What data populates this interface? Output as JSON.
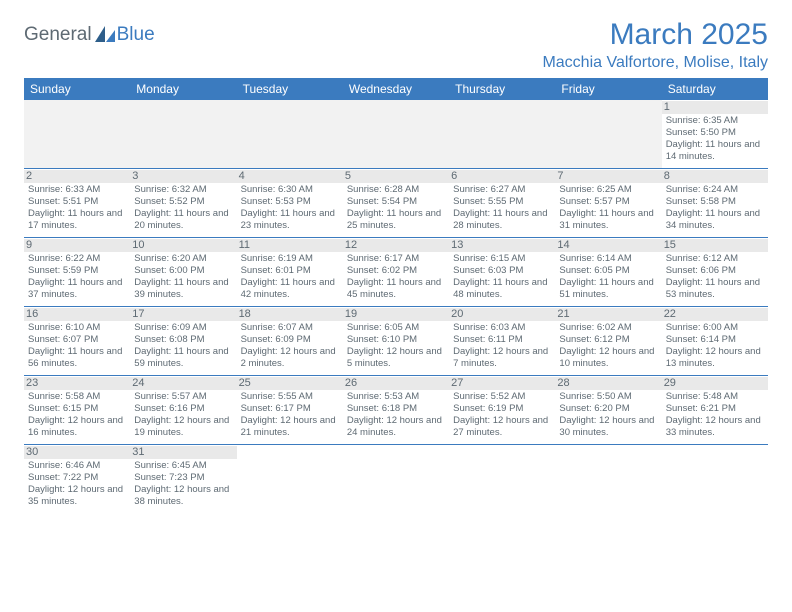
{
  "logo": {
    "text1": "General",
    "text2": "Blue"
  },
  "title": "March 2025",
  "subtitle": "Macchia Valfortore, Molise, Italy",
  "colors": {
    "accent": "#3b7bbf",
    "text_muted": "#5e6a73",
    "daynum_bg": "#e9e9e9",
    "empty_bg": "#f2f2f2",
    "white": "#ffffff"
  },
  "day_headers": [
    "Sunday",
    "Monday",
    "Tuesday",
    "Wednesday",
    "Thursday",
    "Friday",
    "Saturday"
  ],
  "weeks": [
    [
      {
        "empty": true
      },
      {
        "empty": true
      },
      {
        "empty": true
      },
      {
        "empty": true
      },
      {
        "empty": true
      },
      {
        "empty": true
      },
      {
        "n": "1",
        "sunrise": "6:35 AM",
        "sunset": "5:50 PM",
        "dl": "11 hours and 14 minutes."
      }
    ],
    [
      {
        "n": "2",
        "sunrise": "6:33 AM",
        "sunset": "5:51 PM",
        "dl": "11 hours and 17 minutes."
      },
      {
        "n": "3",
        "sunrise": "6:32 AM",
        "sunset": "5:52 PM",
        "dl": "11 hours and 20 minutes."
      },
      {
        "n": "4",
        "sunrise": "6:30 AM",
        "sunset": "5:53 PM",
        "dl": "11 hours and 23 minutes."
      },
      {
        "n": "5",
        "sunrise": "6:28 AM",
        "sunset": "5:54 PM",
        "dl": "11 hours and 25 minutes."
      },
      {
        "n": "6",
        "sunrise": "6:27 AM",
        "sunset": "5:55 PM",
        "dl": "11 hours and 28 minutes."
      },
      {
        "n": "7",
        "sunrise": "6:25 AM",
        "sunset": "5:57 PM",
        "dl": "11 hours and 31 minutes."
      },
      {
        "n": "8",
        "sunrise": "6:24 AM",
        "sunset": "5:58 PM",
        "dl": "11 hours and 34 minutes."
      }
    ],
    [
      {
        "n": "9",
        "sunrise": "6:22 AM",
        "sunset": "5:59 PM",
        "dl": "11 hours and 37 minutes."
      },
      {
        "n": "10",
        "sunrise": "6:20 AM",
        "sunset": "6:00 PM",
        "dl": "11 hours and 39 minutes."
      },
      {
        "n": "11",
        "sunrise": "6:19 AM",
        "sunset": "6:01 PM",
        "dl": "11 hours and 42 minutes."
      },
      {
        "n": "12",
        "sunrise": "6:17 AM",
        "sunset": "6:02 PM",
        "dl": "11 hours and 45 minutes."
      },
      {
        "n": "13",
        "sunrise": "6:15 AM",
        "sunset": "6:03 PM",
        "dl": "11 hours and 48 minutes."
      },
      {
        "n": "14",
        "sunrise": "6:14 AM",
        "sunset": "6:05 PM",
        "dl": "11 hours and 51 minutes."
      },
      {
        "n": "15",
        "sunrise": "6:12 AM",
        "sunset": "6:06 PM",
        "dl": "11 hours and 53 minutes."
      }
    ],
    [
      {
        "n": "16",
        "sunrise": "6:10 AM",
        "sunset": "6:07 PM",
        "dl": "11 hours and 56 minutes."
      },
      {
        "n": "17",
        "sunrise": "6:09 AM",
        "sunset": "6:08 PM",
        "dl": "11 hours and 59 minutes."
      },
      {
        "n": "18",
        "sunrise": "6:07 AM",
        "sunset": "6:09 PM",
        "dl": "12 hours and 2 minutes."
      },
      {
        "n": "19",
        "sunrise": "6:05 AM",
        "sunset": "6:10 PM",
        "dl": "12 hours and 5 minutes."
      },
      {
        "n": "20",
        "sunrise": "6:03 AM",
        "sunset": "6:11 PM",
        "dl": "12 hours and 7 minutes."
      },
      {
        "n": "21",
        "sunrise": "6:02 AM",
        "sunset": "6:12 PM",
        "dl": "12 hours and 10 minutes."
      },
      {
        "n": "22",
        "sunrise": "6:00 AM",
        "sunset": "6:14 PM",
        "dl": "12 hours and 13 minutes."
      }
    ],
    [
      {
        "n": "23",
        "sunrise": "5:58 AM",
        "sunset": "6:15 PM",
        "dl": "12 hours and 16 minutes."
      },
      {
        "n": "24",
        "sunrise": "5:57 AM",
        "sunset": "6:16 PM",
        "dl": "12 hours and 19 minutes."
      },
      {
        "n": "25",
        "sunrise": "5:55 AM",
        "sunset": "6:17 PM",
        "dl": "12 hours and 21 minutes."
      },
      {
        "n": "26",
        "sunrise": "5:53 AM",
        "sunset": "6:18 PM",
        "dl": "12 hours and 24 minutes."
      },
      {
        "n": "27",
        "sunrise": "5:52 AM",
        "sunset": "6:19 PM",
        "dl": "12 hours and 27 minutes."
      },
      {
        "n": "28",
        "sunrise": "5:50 AM",
        "sunset": "6:20 PM",
        "dl": "12 hours and 30 minutes."
      },
      {
        "n": "29",
        "sunrise": "5:48 AM",
        "sunset": "6:21 PM",
        "dl": "12 hours and 33 minutes."
      }
    ],
    [
      {
        "n": "30",
        "sunrise": "6:46 AM",
        "sunset": "7:22 PM",
        "dl": "12 hours and 35 minutes."
      },
      {
        "n": "31",
        "sunrise": "6:45 AM",
        "sunset": "7:23 PM",
        "dl": "12 hours and 38 minutes."
      },
      {
        "empty": true,
        "blank": true
      },
      {
        "empty": true,
        "blank": true
      },
      {
        "empty": true,
        "blank": true
      },
      {
        "empty": true,
        "blank": true
      },
      {
        "empty": true,
        "blank": true
      }
    ]
  ],
  "labels": {
    "sunrise": "Sunrise:",
    "sunset": "Sunset:",
    "daylight": "Daylight:"
  }
}
